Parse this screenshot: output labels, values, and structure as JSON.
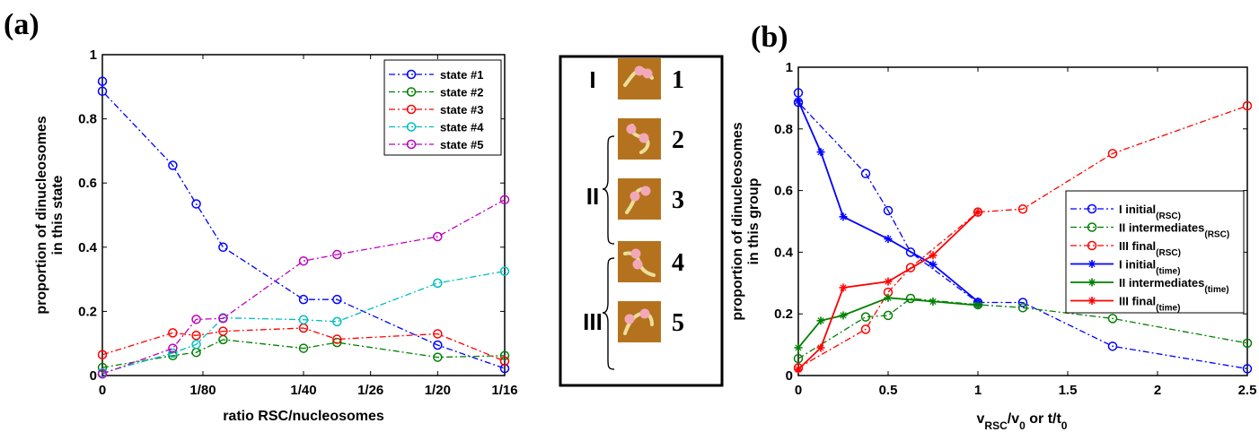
{
  "panels": {
    "a": {
      "letter": "(a)",
      "xlabel": "ratio RSC/nucleosomes",
      "ylabel_line1": "proportion of dinucleosomes",
      "ylabel_line2": "in this state",
      "xticks": [
        {
          "value": 0,
          "label": "0"
        },
        {
          "value": 1.5,
          "label": "1/80"
        },
        {
          "value": 3,
          "label": "1/40"
        },
        {
          "value": 4,
          "label": "1/26"
        },
        {
          "value": 5,
          "label": "1/20"
        },
        {
          "value": 6,
          "label": "1/16"
        }
      ],
      "yticks": [
        {
          "value": 0,
          "label": "0"
        },
        {
          "value": 0.2,
          "label": "0.2"
        },
        {
          "value": 0.4,
          "label": "0.4"
        },
        {
          "value": 0.6,
          "label": "0.6"
        },
        {
          "value": 0.8,
          "label": "0.8"
        },
        {
          "value": 1,
          "label": "1"
        }
      ]
    },
    "b": {
      "letter": "(b)",
      "xlabel_parts": [
        "v",
        "RSC",
        "/v",
        "0",
        " or t/t",
        "0"
      ],
      "ylabel_line1": "proportion of dinucleosomes",
      "ylabel_line2": "in this group",
      "xticks": [
        {
          "value": 0,
          "label": "0"
        },
        {
          "value": 0.5,
          "label": "0.5"
        },
        {
          "value": 1,
          "label": "1"
        },
        {
          "value": 1.5,
          "label": "1.5"
        },
        {
          "value": 2,
          "label": "2"
        },
        {
          "value": 2.5,
          "label": "2.5"
        }
      ],
      "yticks": [
        {
          "value": 0,
          "label": "0"
        },
        {
          "value": 0.2,
          "label": "0.2"
        },
        {
          "value": 0.4,
          "label": "0.4"
        },
        {
          "value": 0.6,
          "label": "0.6"
        },
        {
          "value": 0.8,
          "label": "0.8"
        },
        {
          "value": 1,
          "label": "1"
        }
      ]
    },
    "inset": {
      "groups": [
        {
          "roman": "I",
          "states": [
            "1"
          ]
        },
        {
          "roman": "II",
          "states": [
            "2",
            "3"
          ]
        },
        {
          "roman": "III",
          "states": [
            "4",
            "5"
          ]
        }
      ],
      "image_colors": {
        "background": "#b5721e",
        "dna": "#e8e09a",
        "nucleosome": "#f2a8b8"
      }
    }
  },
  "chart_data": [
    {
      "type": "line",
      "xlabel": "ratio RSC/nucleosomes",
      "ylabel": "proportion of dinucleosomes in this state",
      "xlim": [
        0,
        6
      ],
      "ylim": [
        0,
        1
      ],
      "tick_labels_x": [
        "0",
        "1/80",
        "1/40",
        "1/26",
        "1/20",
        "1/16"
      ],
      "legend_position": "top-right",
      "grid": false,
      "series": [
        {
          "name": "state #1",
          "color": "#0000ff",
          "style": "dash-dot",
          "marker": "circle",
          "x": [
            0,
            0,
            1.05,
            1.4,
            1.8,
            3,
            3.5,
            5,
            6
          ],
          "y": [
            0.917,
            0.886,
            0.655,
            0.535,
            0.4,
            0.237,
            0.237,
            0.095,
            0.022
          ]
        },
        {
          "name": "state #2",
          "color": "#008000",
          "style": "dash-dot",
          "marker": "circle",
          "x": [
            0,
            1.05,
            1.4,
            1.8,
            3,
            3.5,
            5,
            6
          ],
          "y": [
            0.025,
            0.062,
            0.072,
            0.112,
            0.085,
            0.103,
            0.057,
            0.062
          ]
        },
        {
          "name": "state #3",
          "color": "#ff0000",
          "style": "dash-dot",
          "marker": "circle",
          "x": [
            0,
            1.05,
            1.4,
            1.8,
            3,
            3.5,
            5,
            6
          ],
          "y": [
            0.065,
            0.133,
            0.125,
            0.138,
            0.148,
            0.113,
            0.13,
            0.045
          ]
        },
        {
          "name": "state #4",
          "color": "#00bfbf",
          "style": "dash-dot",
          "marker": "circle",
          "x": [
            0,
            1.05,
            1.4,
            1.8,
            3,
            3.5,
            5,
            6
          ],
          "y": [
            0.008,
            0.07,
            0.097,
            0.18,
            0.174,
            0.168,
            0.288,
            0.325
          ]
        },
        {
          "name": "state #5",
          "color": "#bf00bf",
          "style": "dash-dot",
          "marker": "circle",
          "x": [
            0,
            1.05,
            1.4,
            1.8,
            3,
            3.5,
            5,
            6
          ],
          "y": [
            0.005,
            0.085,
            0.175,
            0.178,
            0.357,
            0.377,
            0.433,
            0.548
          ]
        }
      ]
    },
    {
      "type": "line",
      "xlabel": "vRSC/v0 or t/t0",
      "ylabel": "proportion of dinucleosomes in this group",
      "xlim": [
        0,
        2.5
      ],
      "ylim": [
        0,
        1
      ],
      "legend_position": "right",
      "grid": false,
      "series": [
        {
          "name": "I initial",
          "subscript": "(RSC)",
          "color": "#0000ff",
          "style": "dash-dot",
          "marker": "circle",
          "x": [
            0,
            0,
            0.375,
            0.5,
            0.625,
            1,
            1.25,
            1.75,
            2.5
          ],
          "y": [
            0.917,
            0.886,
            0.655,
            0.535,
            0.4,
            0.237,
            0.237,
            0.095,
            0.022
          ]
        },
        {
          "name": "II intermediates",
          "subscript": "(RSC)",
          "color": "#008000",
          "style": "dash-dot",
          "marker": "circle",
          "x": [
            0,
            0.375,
            0.5,
            0.625,
            1,
            1.25,
            1.75,
            2.5
          ],
          "y": [
            0.055,
            0.19,
            0.195,
            0.25,
            0.23,
            0.22,
            0.185,
            0.105
          ]
        },
        {
          "name": "III final",
          "subscript": "(RSC)",
          "color": "#ff0000",
          "style": "dash-dot",
          "marker": "circle",
          "x": [
            0,
            0.375,
            0.5,
            0.625,
            1,
            1.25,
            1.75,
            2.5
          ],
          "y": [
            0.025,
            0.15,
            0.27,
            0.35,
            0.53,
            0.54,
            0.72,
            0.875
          ]
        },
        {
          "name": "I initial",
          "subscript": "(time)",
          "color": "#0000ff",
          "style": "solid",
          "marker": "star",
          "x": [
            0,
            0.125,
            0.25,
            0.5,
            0.75,
            1
          ],
          "y": [
            0.89,
            0.725,
            0.515,
            0.443,
            0.36,
            0.24
          ]
        },
        {
          "name": "II intermediates",
          "subscript": "(time)",
          "color": "#008000",
          "style": "solid",
          "marker": "star",
          "x": [
            0,
            0.125,
            0.25,
            0.5,
            0.75,
            1
          ],
          "y": [
            0.09,
            0.178,
            0.195,
            0.252,
            0.24,
            0.228
          ]
        },
        {
          "name": "III final",
          "subscript": "(time)",
          "color": "#ff0000",
          "style": "solid",
          "marker": "star",
          "x": [
            0,
            0.125,
            0.25,
            0.5,
            0.75,
            1
          ],
          "y": [
            0.02,
            0.09,
            0.285,
            0.305,
            0.39,
            0.53
          ]
        }
      ]
    }
  ]
}
